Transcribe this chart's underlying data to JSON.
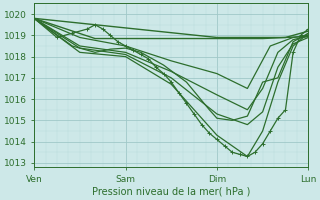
{
  "title": "Pression niveau de la mer( hPa )",
  "xlim": [
    0,
    72
  ],
  "ylim": [
    1012.8,
    1020.5
  ],
  "yticks": [
    1013,
    1014,
    1015,
    1016,
    1017,
    1018,
    1019,
    1020
  ],
  "xtick_positions": [
    0,
    24,
    48,
    72
  ],
  "xtick_labels": [
    "Ven",
    "Sam",
    "Dim",
    "Lun"
  ],
  "background_color": "#cde8e8",
  "grid_major_color": "#a0c8c8",
  "grid_minor_color": "#b8dada",
  "line_color": "#2d6e2d",
  "series": [
    {
      "x": [
        0,
        48,
        66,
        72
      ],
      "y": [
        1019.8,
        1018.9,
        1018.9,
        1019.2
      ],
      "has_markers": false,
      "lw": 1.0
    },
    {
      "x": [
        0,
        16,
        48,
        60,
        72
      ],
      "y": [
        1019.8,
        1018.85,
        1018.85,
        1018.85,
        1018.95
      ],
      "has_markers": false,
      "lw": 1.0
    },
    {
      "x": [
        0,
        12,
        24,
        36,
        48,
        56,
        62,
        68,
        72
      ],
      "y": [
        1019.8,
        1018.9,
        1018.5,
        1017.8,
        1017.2,
        1016.5,
        1018.5,
        1018.9,
        1019.0
      ],
      "has_markers": false,
      "lw": 0.9
    },
    {
      "x": [
        0,
        12,
        24,
        36,
        48,
        56,
        60,
        64,
        68,
        72
      ],
      "y": [
        1019.8,
        1018.5,
        1018.2,
        1017.3,
        1016.2,
        1015.5,
        1016.5,
        1018.2,
        1018.8,
        1018.95
      ],
      "has_markers": false,
      "lw": 0.9
    },
    {
      "x": [
        0,
        12,
        24,
        36,
        48,
        56,
        60,
        64,
        68,
        72
      ],
      "y": [
        1019.8,
        1018.4,
        1018.1,
        1017.0,
        1015.3,
        1014.8,
        1015.4,
        1017.5,
        1018.6,
        1018.9
      ],
      "has_markers": false,
      "lw": 0.9
    },
    {
      "x": [
        0,
        12,
        24,
        36,
        48,
        56,
        60,
        64,
        68,
        72
      ],
      "y": [
        1019.8,
        1018.2,
        1018.0,
        1016.7,
        1014.3,
        1013.3,
        1014.5,
        1016.8,
        1018.5,
        1019.1
      ],
      "has_markers": false,
      "lw": 0.9
    },
    {
      "x": [
        0,
        6,
        10,
        14,
        16,
        18,
        20,
        22,
        24,
        26,
        28,
        30,
        32,
        34,
        36,
        38,
        40,
        42,
        44,
        46,
        48,
        50,
        52,
        54,
        56,
        58,
        60,
        62,
        64,
        66,
        68,
        70,
        72
      ],
      "y": [
        1019.8,
        1018.9,
        1019.1,
        1019.3,
        1019.5,
        1019.3,
        1019.0,
        1018.7,
        1018.5,
        1018.3,
        1018.1,
        1017.9,
        1017.5,
        1017.2,
        1016.8,
        1016.3,
        1015.8,
        1015.3,
        1014.8,
        1014.4,
        1014.1,
        1013.8,
        1013.5,
        1013.4,
        1013.3,
        1013.5,
        1013.9,
        1014.5,
        1015.1,
        1015.5,
        1018.2,
        1019.0,
        1019.3
      ],
      "has_markers": true,
      "lw": 0.9
    },
    {
      "x": [
        0,
        10,
        16,
        20,
        24,
        28,
        34,
        40,
        46,
        48,
        52,
        56,
        60,
        64,
        68,
        72
      ],
      "y": [
        1019.8,
        1018.5,
        1018.2,
        1018.35,
        1018.4,
        1018.2,
        1017.6,
        1016.8,
        1015.5,
        1015.1,
        1015.0,
        1015.2,
        1016.8,
        1017.0,
        1018.7,
        1019.1
      ],
      "has_markers": false,
      "lw": 0.9
    }
  ]
}
